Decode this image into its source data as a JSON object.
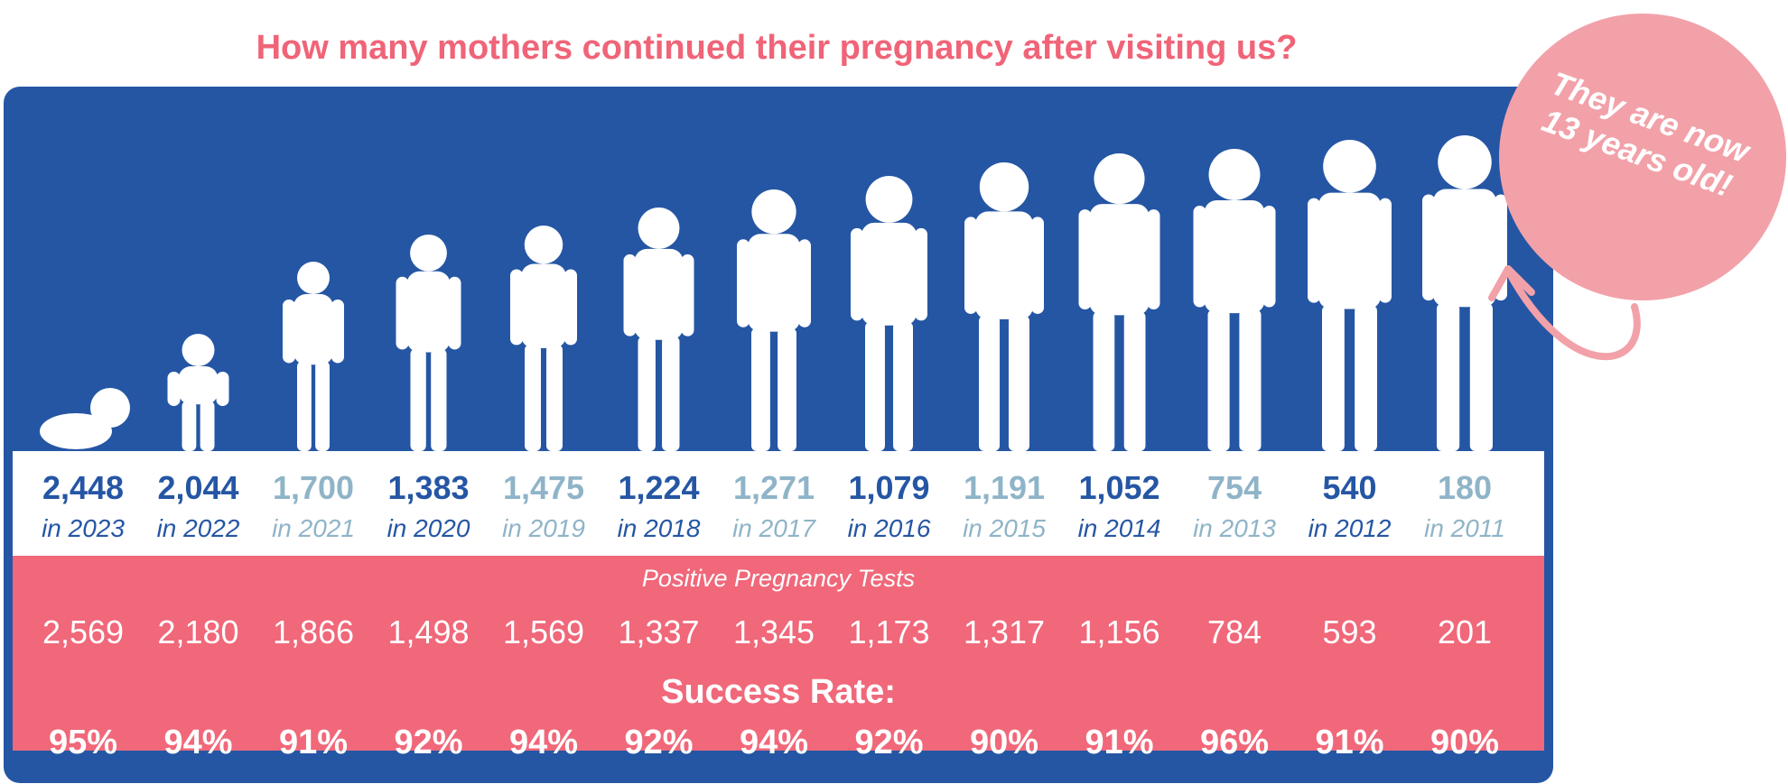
{
  "title": "How many mothers continued their pregnancy after visiting us?",
  "bubble": {
    "line1": "They are now",
    "line2": "13 years old!"
  },
  "positive_label": "Positive Pregnancy Tests",
  "success_label": "Success Rate:",
  "colors": {
    "dark": "#2556a4",
    "light": "#8fb4c8",
    "pink": "#f0687a",
    "bubble": "#f2a1a9",
    "title": "#f06478"
  },
  "columns": [
    {
      "count": "2,448",
      "year": "in 2023",
      "tests": "2,569",
      "rate": "95%",
      "tone": "dark"
    },
    {
      "count": "2,044",
      "year": "in 2022",
      "tests": "2,180",
      "rate": "94%",
      "tone": "dark"
    },
    {
      "count": "1,700",
      "year": "in 2021",
      "tests": "1,866",
      "rate": "91%",
      "tone": "light"
    },
    {
      "count": "1,383",
      "year": "in 2020",
      "tests": "1,498",
      "rate": "92%",
      "tone": "dark"
    },
    {
      "count": "1,475",
      "year": "in 2019",
      "tests": "1,569",
      "rate": "94%",
      "tone": "light"
    },
    {
      "count": "1,224",
      "year": "in 2018",
      "tests": "1,337",
      "rate": "92%",
      "tone": "dark"
    },
    {
      "count": "1,271",
      "year": "in 2017",
      "tests": "1,345",
      "rate": "94%",
      "tone": "light"
    },
    {
      "count": "1,079",
      "year": "in 2016",
      "tests": "1,173",
      "rate": "92%",
      "tone": "dark"
    },
    {
      "count": "1,191",
      "year": "in 2015",
      "tests": "1,317",
      "rate": "90%",
      "tone": "light"
    },
    {
      "count": "1,052",
      "year": "in 2014",
      "tests": "1,156",
      "rate": "91%",
      "tone": "dark"
    },
    {
      "count": "754",
      "year": "in 2013",
      "tests": "784",
      "rate": "96%",
      "tone": "light"
    },
    {
      "count": "540",
      "year": "in 2012",
      "tests": "593",
      "rate": "91%",
      "tone": "dark"
    },
    {
      "count": "180",
      "year": "in 2011",
      "tests": "201",
      "rate": "90%",
      "tone": "light"
    }
  ],
  "chart_data": {
    "type": "table",
    "categories": [
      "2023",
      "2022",
      "2021",
      "2020",
      "2019",
      "2018",
      "2017",
      "2016",
      "2015",
      "2014",
      "2013",
      "2012",
      "2011"
    ],
    "series": [
      {
        "name": "Positive Pregnancy Tests",
        "values": [
          2569,
          2180,
          1866,
          1498,
          1569,
          1337,
          1345,
          1173,
          1317,
          1156,
          784,
          593,
          201
        ]
      },
      {
        "name": "Success Rate:",
        "values": [
          95,
          94,
          91,
          92,
          94,
          92,
          94,
          92,
          90,
          91,
          96,
          91,
          90
        ]
      }
    ]
  }
}
